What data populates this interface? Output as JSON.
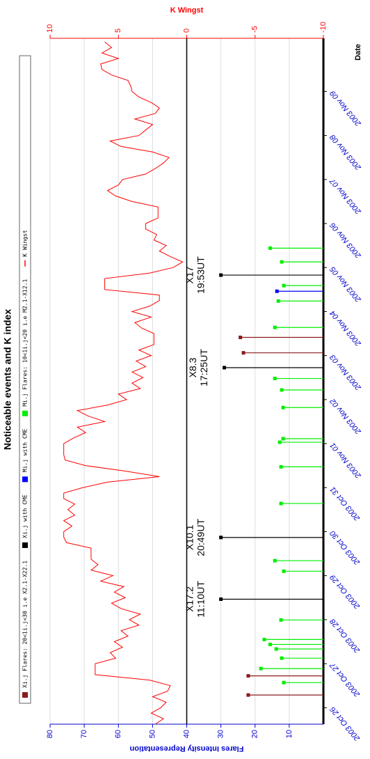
{
  "chart_data": {
    "type": "stem-line",
    "title": "Noticeable events and K index",
    "x_label": "Date",
    "y_label": "Flares Intensity Representation",
    "y2_label": "K Wingst",
    "xlim": [
      "2003-10-25 15:00",
      "2003-11-10 05:00"
    ],
    "xticks": [
      {
        "value": "2003-10-26 00:00",
        "label": "2003 Oct 26"
      },
      {
        "value": "2003-10-27 00:00",
        "label": "2003 Oct 27"
      },
      {
        "value": "2003-10-28 00:00",
        "label": "2003 Oct 28"
      },
      {
        "value": "2003-10-29 00:00",
        "label": "2003 Oct 29"
      },
      {
        "value": "2003-10-30 00:00",
        "label": "2003 Oct 30"
      },
      {
        "value": "2003-10-31 00:00",
        "label": "2003 Oct 31"
      },
      {
        "value": "2003-11-01 00:00",
        "label": "2003 Nov 01"
      },
      {
        "value": "2003-11-02 00:00",
        "label": "2003 Nov 02"
      },
      {
        "value": "2003-11-03 00:00",
        "label": "2003 Nov 03"
      },
      {
        "value": "2003-11-04 00:00",
        "label": "2003 Nov 04"
      },
      {
        "value": "2003-11-05 00:00",
        "label": "2003 Nov 05"
      },
      {
        "value": "2003-11-06 00:00",
        "label": "2003 Nov 06"
      },
      {
        "value": "2003-11-07 00:00",
        "label": "2003 Nov 07"
      },
      {
        "value": "2003-11-08 00:00",
        "label": "2003 Nov 08"
      },
      {
        "value": "2003-11-09 00:00",
        "label": "2003 Nov 09"
      }
    ],
    "ylim": [
      0,
      80
    ],
    "yticks": [
      10,
      20,
      30,
      40,
      50,
      60,
      70,
      80
    ],
    "y2lim": [
      -10,
      10
    ],
    "y2ticks": [
      -10,
      -5,
      0,
      5,
      10
    ],
    "grid": true,
    "zero_line": true,
    "series": [
      {
        "name": "Xi.j Flares: 20<1i.j<30 i.e X2.1-X22.1",
        "color": "#8b1a1a",
        "x": [
          "2003-10-26 06:54",
          "2003-10-26 17:21",
          "2003-11-03 01:30",
          "2003-11-03 09:55"
        ],
        "values": [
          22,
          22,
          23.4,
          24.3
        ]
      },
      {
        "name": "Xi.j with CME",
        "color": "#000000",
        "x": [
          "2003-10-28 11:10",
          "2003-10-29 20:49",
          "2003-11-02 17:25",
          "2003-11-04 19:53"
        ],
        "values": [
          30,
          30,
          29,
          30
        ],
        "labels": [
          [
            "X17.2",
            "11:10UT"
          ],
          [
            "X10.1",
            "20:49UT"
          ],
          [
            "X8.3",
            "17:25UT"
          ],
          [
            "X17",
            "19:53UT"
          ]
        ]
      },
      {
        "name": "Mi.j with CME",
        "color": "#0000ff",
        "x": [
          "2003-11-04 11:05"
        ],
        "values": [
          13.6
        ]
      },
      {
        "name": "Mi.j Flares: 10<1i.j<20 i.e M2.1-X12.1",
        "color": "#00ee00",
        "x": [
          "2003-10-26 13:40",
          "2003-10-26 21:20",
          "2003-10-27 03:00",
          "2003-10-27 08:00",
          "2003-10-27 10:30",
          "2003-10-27 13:10",
          "2003-10-27 23:50",
          "2003-10-29 02:25",
          "2003-10-29 08:10",
          "2003-10-30 15:20",
          "2003-10-31 11:20",
          "2003-11-01 00:45",
          "2003-11-01 02:40",
          "2003-11-01 19:40",
          "2003-11-02 05:15",
          "2003-11-02 11:30",
          "2003-11-03 15:20",
          "2003-11-04 05:45",
          "2003-11-04 14:10",
          "2003-11-05 03:05",
          "2003-11-05 10:35"
        ],
        "values": [
          11.6,
          18.3,
          12.2,
          13.8,
          15.6,
          17.3,
          12.4,
          11.6,
          14.2,
          12.4,
          12.4,
          12.8,
          11.8,
          11.8,
          12.2,
          14.2,
          14.2,
          13.2,
          11.6,
          12.2,
          15.6
        ]
      },
      {
        "name": "K Wingst",
        "color": "#ff0000",
        "axis": "y2",
        "x": [
          "2003-10-25 15:00",
          "2003-10-25 18:00",
          "2003-10-25 21:00",
          "2003-10-26 00:00",
          "2003-10-26 03:00",
          "2003-10-26 06:00",
          "2003-10-26 09:00",
          "2003-10-26 12:00",
          "2003-10-26 15:00",
          "2003-10-26 18:00",
          "2003-10-26 21:00",
          "2003-10-27 00:00",
          "2003-10-27 03:00",
          "2003-10-27 06:00",
          "2003-10-27 09:00",
          "2003-10-27 12:00",
          "2003-10-27 15:00",
          "2003-10-27 18:00",
          "2003-10-27 21:00",
          "2003-10-28 00:00",
          "2003-10-28 03:00",
          "2003-10-28 06:00",
          "2003-10-28 09:00",
          "2003-10-28 12:00",
          "2003-10-28 15:00",
          "2003-10-28 18:00",
          "2003-10-28 21:00",
          "2003-10-29 00:00",
          "2003-10-29 03:00",
          "2003-10-29 06:00",
          "2003-10-29 09:00",
          "2003-10-29 12:00",
          "2003-10-29 15:00",
          "2003-10-29 18:00",
          "2003-10-29 21:00",
          "2003-10-30 00:00",
          "2003-10-30 03:00",
          "2003-10-30 06:00",
          "2003-10-30 09:00",
          "2003-10-30 12:00",
          "2003-10-30 15:00",
          "2003-10-30 18:00",
          "2003-10-30 21:00",
          "2003-10-31 00:00",
          "2003-10-31 03:00",
          "2003-10-31 06:00",
          "2003-10-31 09:00",
          "2003-10-31 12:00",
          "2003-10-31 15:00",
          "2003-10-31 18:00",
          "2003-10-31 21:00",
          "2003-11-01 00:00",
          "2003-11-01 03:00",
          "2003-11-01 06:00",
          "2003-11-01 09:00",
          "2003-11-01 12:00",
          "2003-11-01 15:00",
          "2003-11-01 18:00",
          "2003-11-01 21:00",
          "2003-11-02 00:00",
          "2003-11-02 03:00",
          "2003-11-02 06:00",
          "2003-11-02 09:00",
          "2003-11-02 12:00",
          "2003-11-02 15:00",
          "2003-11-02 18:00",
          "2003-11-02 21:00",
          "2003-11-03 00:00",
          "2003-11-03 03:00",
          "2003-11-03 06:00",
          "2003-11-03 09:00",
          "2003-11-03 12:00",
          "2003-11-03 15:00",
          "2003-11-03 18:00",
          "2003-11-03 21:00",
          "2003-11-04 00:00",
          "2003-11-04 03:00",
          "2003-11-04 06:00",
          "2003-11-04 09:00",
          "2003-11-04 12:00",
          "2003-11-04 15:00",
          "2003-11-04 18:00",
          "2003-11-04 21:00",
          "2003-11-05 00:00",
          "2003-11-05 03:00",
          "2003-11-05 06:00",
          "2003-11-05 09:00",
          "2003-11-05 12:00",
          "2003-11-05 15:00",
          "2003-11-05 18:00",
          "2003-11-05 21:00",
          "2003-11-06 00:00",
          "2003-11-06 03:00",
          "2003-11-06 06:00",
          "2003-11-06 09:00",
          "2003-11-06 12:00",
          "2003-11-06 15:00",
          "2003-11-06 18:00",
          "2003-11-06 21:00",
          "2003-11-07 00:00",
          "2003-11-07 03:00",
          "2003-11-07 06:00",
          "2003-11-07 09:00",
          "2003-11-07 12:00",
          "2003-11-07 15:00",
          "2003-11-07 18:00",
          "2003-11-07 21:00",
          "2003-11-08 00:00",
          "2003-11-08 03:00",
          "2003-11-08 06:00",
          "2003-11-08 09:00",
          "2003-11-08 12:00",
          "2003-11-08 15:00",
          "2003-11-08 18:00",
          "2003-11-08 21:00",
          "2003-11-09 00:00",
          "2003-11-09 03:00",
          "2003-11-09 06:00",
          "2003-11-09 09:00",
          "2003-11-09 12:00",
          "2003-11-09 15:00",
          "2003-11-09 18:00",
          "2003-11-09 21:00",
          "2003-11-10 00:00",
          "2003-11-10 03:00"
        ],
        "values": [
          2.3,
          1.7,
          2.6,
          1.9,
          1.5,
          2.5,
          1.4,
          1.2,
          2.7,
          6.7,
          6.7,
          6.7,
          5.2,
          5.6,
          4.7,
          5.3,
          4.3,
          4.8,
          3.5,
          4.2,
          3.4,
          4.8,
          5.5,
          4.5,
          5.3,
          4.6,
          6.3,
          5.4,
          7.0,
          6.5,
          7.0,
          7.0,
          7.0,
          8.8,
          9.0,
          9.0,
          8.4,
          9.0,
          8.2,
          8.7,
          8.2,
          9.0,
          9.0,
          7.6,
          5.8,
          2.0,
          4.5,
          7.4,
          8.9,
          9.0,
          9.0,
          9.0,
          8.3,
          7.4,
          8.0,
          6.0,
          7.2,
          8.0,
          5.8,
          4.4,
          5.0,
          3.4,
          4.0,
          3.2,
          4.0,
          3.0,
          3.7,
          2.6,
          3.5,
          2.4,
          2.4,
          2.4,
          3.3,
          3.8,
          2.6,
          4.0,
          2.7,
          2.0,
          2.0,
          6.0,
          6.0,
          6.0,
          2.7,
          1.0,
          0.3,
          1.2,
          2.0,
          1.5,
          2.4,
          2.2,
          3.0,
          3.0,
          2.1,
          2.1,
          2.1,
          4.0,
          5.2,
          5.8,
          5.0,
          4.7,
          3.0,
          2.3,
          1.7,
          1.3,
          2.5,
          4.8,
          5.6,
          3.5,
          3.0,
          2.5,
          3.8,
          2.3,
          2.0,
          2.6,
          3.5,
          4.0,
          4.1,
          4.3,
          5.5,
          6.2,
          6.3,
          5.0,
          6.2,
          5.5,
          6.0
        ]
      }
    ]
  }
}
